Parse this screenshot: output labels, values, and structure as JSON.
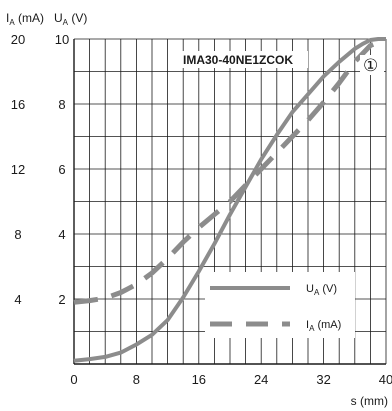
{
  "chart_data": {
    "type": "line",
    "title": "IMA30-40NE1ZCOK",
    "marker": "①",
    "x_label": "s (mm)",
    "y_left_label": "I_A (mA)",
    "y_right_label": "U_A (V)",
    "x_ticks": [
      "0",
      "8",
      "16",
      "24",
      "32",
      "40"
    ],
    "y_left_ticks": [
      "4",
      "8",
      "12",
      "16",
      "20"
    ],
    "y_right_ticks": [
      "2",
      "4",
      "6",
      "8",
      "10"
    ],
    "xlim": [
      0,
      40
    ],
    "ylim_voltage": [
      0,
      10
    ],
    "ylim_current": [
      0,
      20
    ],
    "grid": true,
    "legend_position": "bottom-right",
    "series": [
      {
        "name": "U_A (V)",
        "axis": "U_A (V)",
        "line_style": "solid",
        "color": "#8c8c8c",
        "x": [
          0,
          2,
          4,
          6,
          8,
          10,
          12,
          14,
          16,
          18,
          20,
          22,
          24,
          26,
          28,
          30,
          32,
          34,
          36,
          37,
          38,
          39,
          40
        ],
        "y": [
          0.1,
          0.15,
          0.22,
          0.35,
          0.6,
          0.9,
          1.35,
          2.05,
          2.85,
          3.7,
          4.6,
          5.45,
          6.3,
          7.05,
          7.75,
          8.3,
          8.85,
          9.3,
          9.7,
          9.85,
          9.97,
          10.0,
          10.0
        ]
      },
      {
        "name": "I_A (mA)",
        "axis": "I_A (mA)",
        "line_style": "dashed",
        "color": "#8c8c8c",
        "x": [
          0,
          2,
          4,
          6,
          8,
          10,
          12,
          14,
          16,
          18,
          20,
          22,
          24,
          26,
          28,
          30,
          32,
          34,
          36,
          38,
          40
        ],
        "y": [
          3.8,
          3.9,
          4.05,
          4.4,
          4.9,
          5.6,
          6.5,
          7.5,
          8.4,
          9.2,
          10.0,
          11.0,
          12.0,
          13.0,
          14.0,
          15.0,
          16.1,
          17.3,
          18.6,
          19.6,
          20.0
        ]
      }
    ]
  }
}
